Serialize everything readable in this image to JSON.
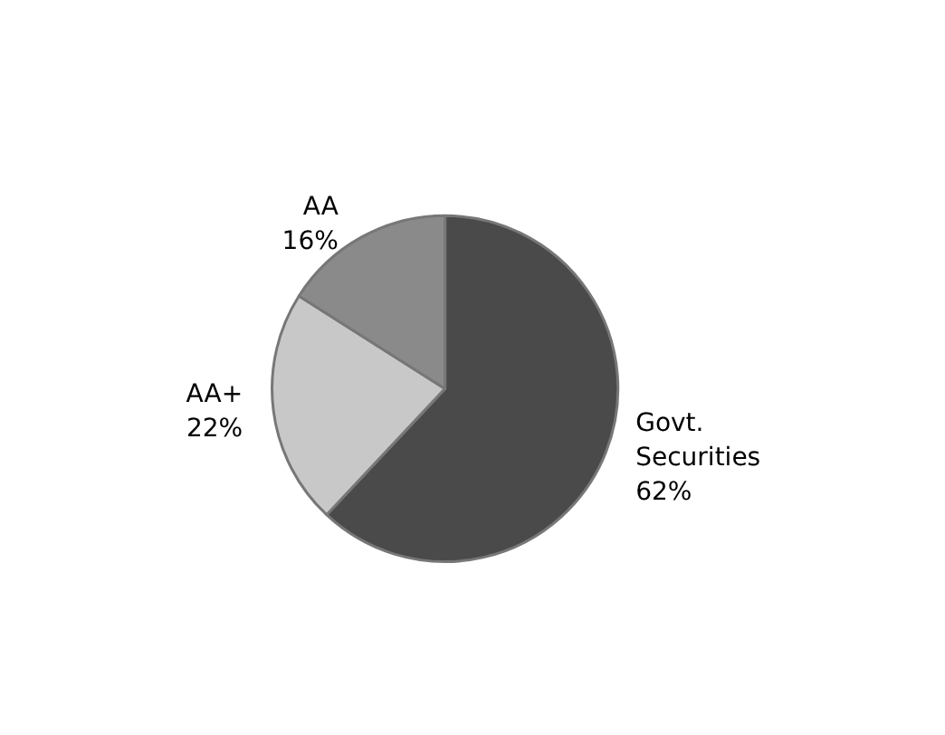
{
  "chart_data": {
    "type": "pie",
    "categories": [
      "Govt. Securities",
      "AA+",
      "AA"
    ],
    "values": [
      62,
      22,
      16
    ],
    "value_labels": [
      "62%",
      "22%",
      "16%"
    ],
    "colors": [
      "#4a4a4a",
      "#c8c8c8",
      "#8a8a8a"
    ]
  }
}
